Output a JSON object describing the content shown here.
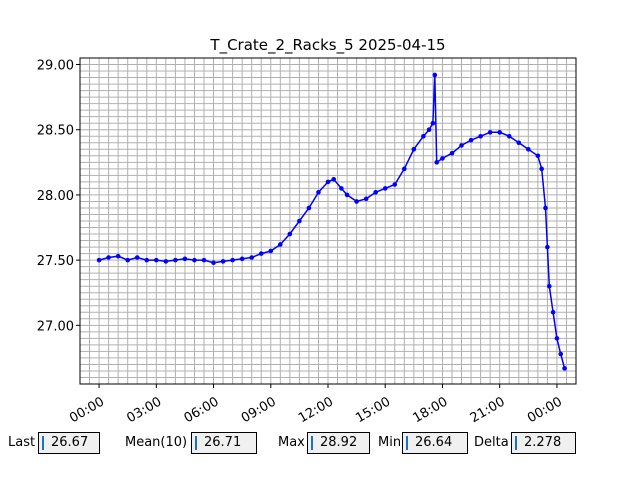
{
  "chart_data": {
    "type": "line",
    "title": "T_Crate_2_Racks_5 2025-04-15",
    "xlabel": "",
    "ylabel": "",
    "x_ticks": [
      "00:00",
      "03:00",
      "06:00",
      "09:00",
      "12:00",
      "15:00",
      "18:00",
      "21:00",
      "00:00"
    ],
    "y_ticks": [
      "27.00",
      "27.50",
      "28.00",
      "28.50",
      "29.00"
    ],
    "xlim_hours": [
      -1.0,
      25.0
    ],
    "ylim": [
      26.55,
      29.05
    ],
    "grid": true,
    "series": [
      {
        "color": "#0000ff",
        "marker": "circle",
        "points": [
          [
            0.0,
            27.5
          ],
          [
            0.5,
            27.52
          ],
          [
            1.0,
            27.53
          ],
          [
            1.5,
            27.5
          ],
          [
            2.0,
            27.52
          ],
          [
            2.5,
            27.5
          ],
          [
            3.0,
            27.5
          ],
          [
            3.5,
            27.49
          ],
          [
            4.0,
            27.5
          ],
          [
            4.5,
            27.51
          ],
          [
            5.0,
            27.5
          ],
          [
            5.5,
            27.5
          ],
          [
            6.0,
            27.48
          ],
          [
            6.5,
            27.49
          ],
          [
            7.0,
            27.5
          ],
          [
            7.5,
            27.51
          ],
          [
            8.0,
            27.52
          ],
          [
            8.5,
            27.55
          ],
          [
            9.0,
            27.57
          ],
          [
            9.5,
            27.62
          ],
          [
            10.0,
            27.7
          ],
          [
            10.5,
            27.8
          ],
          [
            11.0,
            27.9
          ],
          [
            11.5,
            28.02
          ],
          [
            12.0,
            28.1
          ],
          [
            12.3,
            28.12
          ],
          [
            12.7,
            28.05
          ],
          [
            13.0,
            28.0
          ],
          [
            13.5,
            27.95
          ],
          [
            14.0,
            27.97
          ],
          [
            14.5,
            28.02
          ],
          [
            15.0,
            28.05
          ],
          [
            15.5,
            28.08
          ],
          [
            16.0,
            28.2
          ],
          [
            16.5,
            28.35
          ],
          [
            17.0,
            28.45
          ],
          [
            17.3,
            28.5
          ],
          [
            17.5,
            28.55
          ],
          [
            17.6,
            28.92
          ],
          [
            17.7,
            28.25
          ],
          [
            18.0,
            28.28
          ],
          [
            18.5,
            28.32
          ],
          [
            19.0,
            28.38
          ],
          [
            19.5,
            28.42
          ],
          [
            20.0,
            28.45
          ],
          [
            20.5,
            28.48
          ],
          [
            21.0,
            28.48
          ],
          [
            21.5,
            28.45
          ],
          [
            22.0,
            28.4
          ],
          [
            22.5,
            28.35
          ],
          [
            23.0,
            28.3
          ],
          [
            23.2,
            28.2
          ],
          [
            23.4,
            27.9
          ],
          [
            23.5,
            27.6
          ],
          [
            23.6,
            27.3
          ],
          [
            23.8,
            27.1
          ],
          [
            24.0,
            26.9
          ],
          [
            24.2,
            26.78
          ],
          [
            24.4,
            26.67
          ]
        ]
      }
    ]
  },
  "stats": {
    "last_label": "Last",
    "last_value": "26.67",
    "mean_label": "Mean(10)",
    "mean_value": "26.71",
    "max_label": "Max",
    "max_value": "28.92",
    "min_label": "Min",
    "min_value": "26.64",
    "delta_label": "Delta",
    "delta_value": "2.278"
  }
}
